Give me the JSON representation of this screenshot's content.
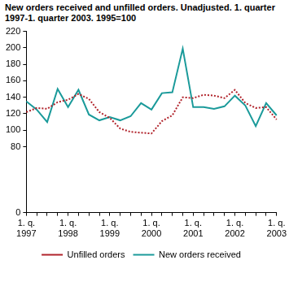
{
  "chart_data": {
    "type": "line",
    "title": "New orders received and unfilled orders. Unadjusted. 1. quarter 1997-1. quarter 2003. 1995=100",
    "categories": [
      [
        "1. q.",
        "1997"
      ],
      null,
      null,
      null,
      [
        "1. q.",
        "1998"
      ],
      null,
      null,
      null,
      [
        "1. q.",
        "1999"
      ],
      null,
      null,
      null,
      [
        "1. q.",
        "2000"
      ],
      null,
      null,
      null,
      [
        "1. q.",
        "2001"
      ],
      null,
      null,
      null,
      [
        "1. q.",
        "2002"
      ],
      null,
      null,
      null,
      [
        "1. q.",
        "2003"
      ]
    ],
    "series": [
      {
        "name": "Unfilled orders",
        "color": "#b0222a",
        "line_style": "dotted",
        "marker": "none",
        "values": [
          122,
          127,
          126,
          134,
          137,
          144,
          138,
          122,
          115,
          102,
          98,
          97,
          96,
          111,
          118,
          140,
          139,
          143,
          142,
          139,
          149,
          133,
          127,
          128,
          113
        ]
      },
      {
        "name": "New orders received",
        "color": "#1a9a9a",
        "line_style": "solid",
        "marker": "none",
        "values": [
          135,
          125,
          110,
          150,
          128,
          149,
          119,
          112,
          116,
          112,
          117,
          133,
          125,
          145,
          146,
          199,
          128,
          128,
          126,
          129,
          142,
          130,
          105,
          133,
          118
        ]
      }
    ],
    "ylim": [
      0,
      220
    ],
    "yticks": [
      0,
      80,
      100,
      120,
      140,
      160,
      180,
      200,
      220
    ],
    "grid": false,
    "legend": "bottom"
  }
}
